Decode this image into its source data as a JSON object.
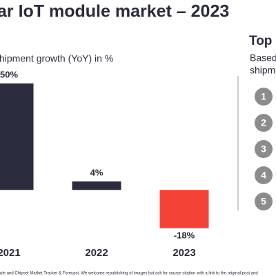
{
  "chart_data": {
    "type": "bar",
    "title": "ar IoT module market – 2023",
    "subtitle": "hipment growth (YoY) in %",
    "categories": [
      "2021",
      "2022",
      "2023"
    ],
    "values": [
      50,
      4,
      -18
    ],
    "value_labels": [
      "50%",
      "4%",
      "-18%"
    ],
    "colors": [
      "#2b2d3e",
      "#2b2d3e",
      "#f44336"
    ],
    "ylim": [
      -20,
      60
    ]
  },
  "panel": {
    "title": "Top",
    "lines": [
      "Based",
      "shipm"
    ],
    "items": [
      "1",
      "2",
      "3",
      "4",
      "5"
    ]
  },
  "footnote": "ule and Chipset Market Tracker & Forecast. We welcome republishing of images but ask for source citation with a link to the original post and"
}
